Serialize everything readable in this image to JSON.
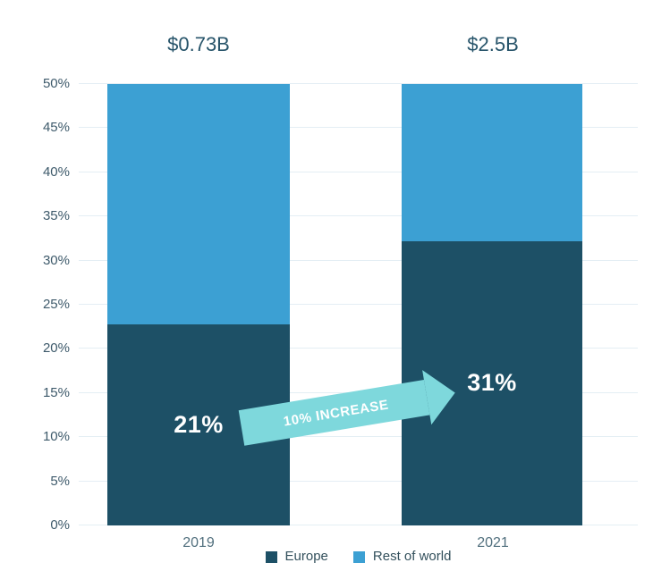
{
  "chart_data": {
    "type": "bar",
    "stacked": true,
    "title": "",
    "xlabel": "",
    "ylabel": "",
    "categories": [
      "2019",
      "2021"
    ],
    "series": [
      {
        "name": "Europe",
        "color": "#1d5066",
        "values": [
          21,
          31
        ]
      },
      {
        "name": "Rest of world",
        "color": "#3ca0d3",
        "values": [
          29,
          19
        ]
      }
    ],
    "bar_total_labels": [
      "$0.73B",
      "$2.5B"
    ],
    "europe_value_labels": [
      "21%",
      "31%"
    ],
    "ylim": [
      0,
      50
    ],
    "ytick_labels": [
      "0%",
      "5%",
      "10%",
      "15%",
      "20%",
      "25%",
      "30%",
      "35%",
      "40%",
      "45%",
      "50%"
    ],
    "grid": true,
    "legend_position": "bottom",
    "annotation": {
      "text": "10% INCREASE"
    }
  },
  "colors": {
    "arrow": "#7ed8dc",
    "gridline": "#e4eef4",
    "tick_text": "#3e5a6b",
    "total_text": "#27546a",
    "xlabel_text": "#52707e",
    "legend_text": "#33505c",
    "background": "#ffffff"
  }
}
